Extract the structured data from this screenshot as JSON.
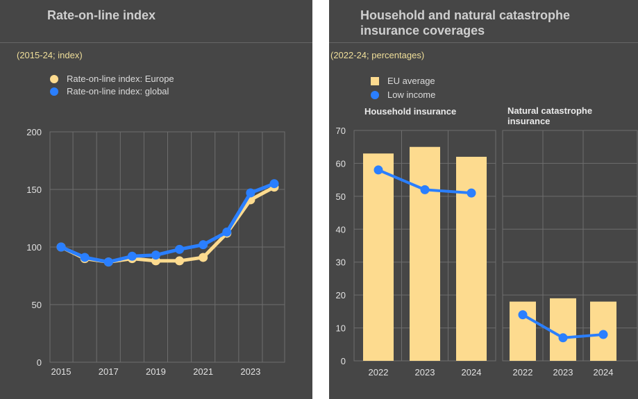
{
  "colors": {
    "europe": "#fddb8f",
    "global": "#2a7fff",
    "eu_average": "#fddb8f",
    "low_income": "#2a7fff",
    "grid": "#6e6e6e",
    "text": "#e2e2e2"
  },
  "left": {
    "title": "Rate-on-line index",
    "subtitle": "(2015-24; index)",
    "legend": [
      "Rate-on-line index: Europe",
      "Rate-on-line index: global"
    ]
  },
  "right": {
    "title_line1": "Household and natural catastrophe",
    "title_line2": "insurance coverages",
    "subtitle": "(2022-24; percentages)",
    "legend": [
      "EU average",
      "Low income"
    ],
    "facet1_title": "Household insurance",
    "facet2_title_line1": "Natural catastrophe",
    "facet2_title_line2": "insurance"
  },
  "chart_data": [
    {
      "type": "line",
      "title": "Rate-on-line index",
      "x": [
        2015,
        2016,
        2017,
        2018,
        2019,
        2020,
        2021,
        2022,
        2023,
        2024
      ],
      "xticks": [
        "2015",
        "2017",
        "2019",
        "2021",
        "2023"
      ],
      "ylim": [
        0,
        200
      ],
      "yticks": [
        "0",
        "50",
        "100",
        "150",
        "200"
      ],
      "series": [
        {
          "name": "Rate-on-line index: Europe",
          "values": [
            100,
            90,
            87,
            90,
            88,
            88,
            91,
            112,
            141,
            152
          ]
        },
        {
          "name": "Rate-on-line index: global",
          "values": [
            100,
            91,
            87,
            92,
            93,
            98,
            102,
            113,
            147,
            155
          ]
        }
      ]
    },
    {
      "type": "bar",
      "title": "Household insurance",
      "categories": [
        "2022",
        "2023",
        "2024"
      ],
      "ylim": [
        0,
        70
      ],
      "yticks": [
        "0",
        "10",
        "20",
        "30",
        "40",
        "50",
        "60",
        "70"
      ],
      "series": [
        {
          "name": "EU average",
          "kind": "bar",
          "values": [
            63,
            65,
            62
          ]
        },
        {
          "name": "Low income",
          "kind": "line",
          "values": [
            58,
            52,
            51
          ]
        }
      ]
    },
    {
      "type": "bar",
      "title": "Natural catastrophe insurance",
      "categories": [
        "2022",
        "2023",
        "2024"
      ],
      "ylim": [
        0,
        70
      ],
      "series": [
        {
          "name": "EU average",
          "kind": "bar",
          "values": [
            18,
            19,
            18
          ]
        },
        {
          "name": "Low income",
          "kind": "line",
          "values": [
            14,
            7,
            8
          ]
        }
      ]
    }
  ]
}
